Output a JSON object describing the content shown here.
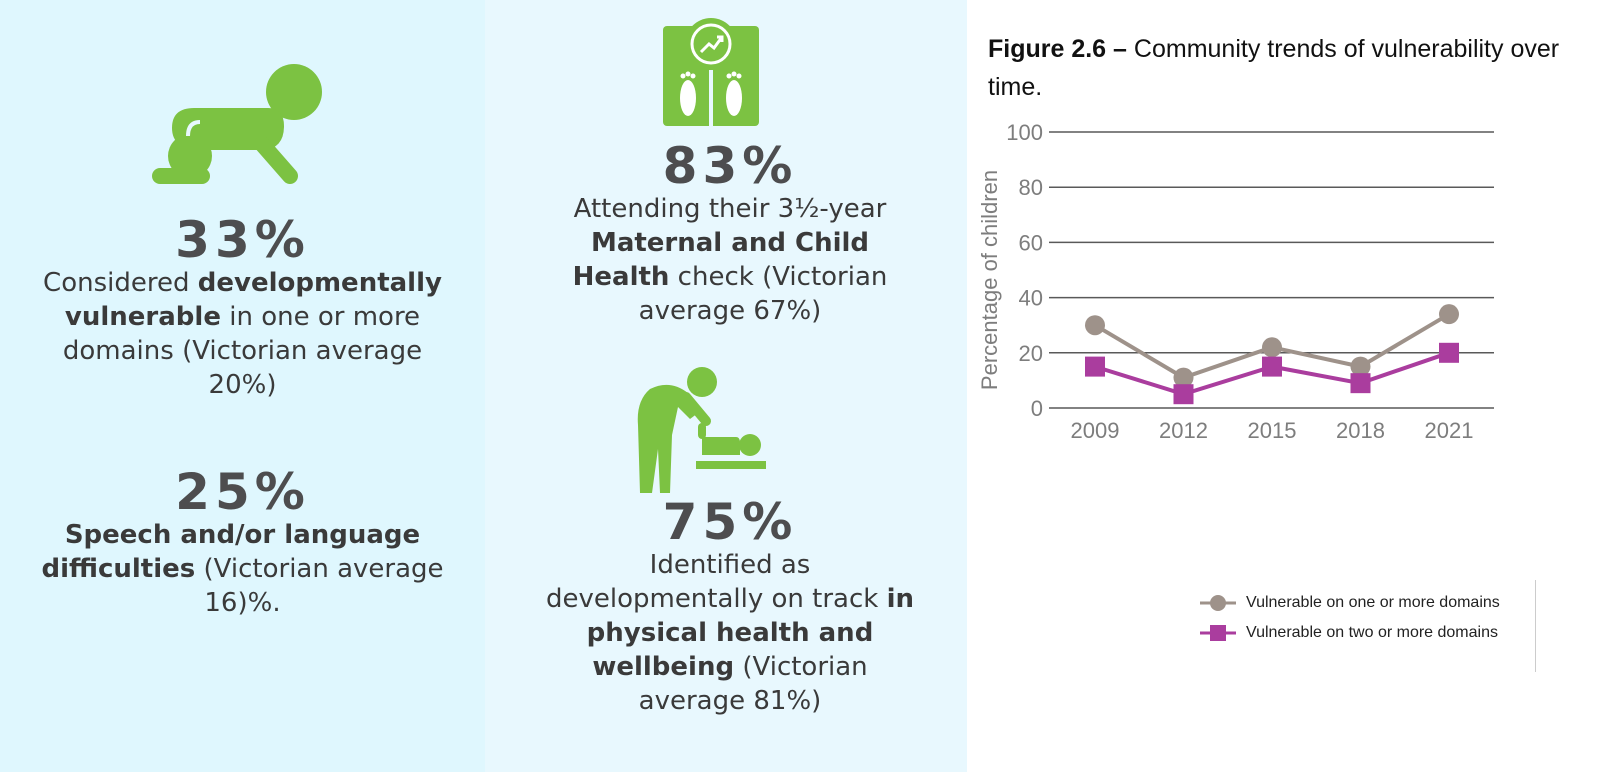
{
  "stats": [
    {
      "value": "33%",
      "parts": [
        {
          "text": "Considered ",
          "bold": false
        },
        {
          "text": "developmentally vulnerable",
          "bold": true
        },
        {
          "text": " in one or more domains  (Victorian average 20%)",
          "bold": false
        }
      ],
      "icon": "crawling-baby-icon"
    },
    {
      "value": "25%",
      "parts": [
        {
          "text": "Speech and/or language difficulties",
          "bold": true
        },
        {
          "text": " (Victorian average 16)%.",
          "bold": false
        }
      ]
    },
    {
      "value": "83%",
      "parts": [
        {
          "text": "Attending their 3½-year ",
          "bold": false
        },
        {
          "text": "Maternal and Child Health",
          "bold": true
        },
        {
          "text": " check (Victorian average 67%)",
          "bold": false
        }
      ],
      "icon": "weighing-scale-icon"
    },
    {
      "value": "75%",
      "parts": [
        {
          "text": "Identified as developmentally on track ",
          "bold": false
        },
        {
          "text": "in physical health and wellbeing",
          "bold": true
        },
        {
          "text": " (Victorian average 81%)",
          "bold": false
        }
      ],
      "icon": "parent-changing-baby-icon"
    }
  ],
  "colors": {
    "icon_green": "#7cc242",
    "stat_text": "#4d4d4f",
    "series_one": "#9e928a",
    "series_two": "#aa3d9e",
    "grid": "#595959"
  },
  "chart_data": {
    "type": "line",
    "title_bold": "Figure 2.6 –",
    "title": "Community trends of vulnerability over time.",
    "xlabel": "",
    "ylabel": "Percentage of children",
    "x": [
      "2009",
      "2012",
      "2015",
      "2018",
      "2021"
    ],
    "ylim": [
      0,
      100
    ],
    "yticks": [
      0,
      20,
      40,
      60,
      80,
      100
    ],
    "grid": true,
    "legend_position": "bottom-right",
    "series": [
      {
        "name": "Vulnerable on one or more domains",
        "values": [
          30,
          11,
          22,
          15,
          34
        ],
        "marker": "circle",
        "color": "#9e928a"
      },
      {
        "name": "Vulnerable on two or more domains",
        "values": [
          15,
          5,
          15,
          9,
          20
        ],
        "marker": "square",
        "color": "#aa3d9e"
      }
    ]
  }
}
